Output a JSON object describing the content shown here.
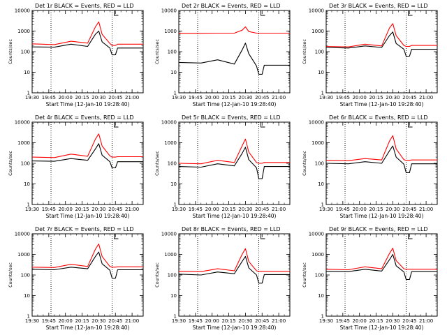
{
  "figure": {
    "title_format": "Det {d} BLACK = Events, RED = LLD",
    "ylabel": "Counts/sec",
    "xlabel": "Start Time (12-Jan-10 19:28:40)"
  },
  "colors": {
    "events": "#000000",
    "lld": "#ff0000",
    "axis": "#000000",
    "marker": "#000000"
  },
  "chart_data": [
    {
      "type": "line",
      "title": "Det 1r BLACK = Events, RED = LLD",
      "xlabel": "Start Time (12-Jan-10 19:28:40)",
      "ylabel": "Counts/sec",
      "y_scale": "log",
      "xlim": [
        "19:30",
        "21:10"
      ],
      "ylim": [
        1,
        10000
      ],
      "x_ticks": [
        "19:30",
        "19:45",
        "20:00",
        "20:15",
        "20:30",
        "20:45",
        "21:00"
      ],
      "y_ticks": [
        "1",
        "10",
        "100",
        "1000",
        "10000"
      ],
      "vertical_dotted_lines": [
        "19:47",
        "20:42"
      ],
      "x": [
        "19:30",
        "19:50",
        "20:05",
        "20:20",
        "20:27",
        "20:30",
        "20:33",
        "20:40",
        "20:42",
        "20:45",
        "20:47",
        "21:10"
      ],
      "series": [
        {
          "name": "Events",
          "color": "#000000",
          "values": [
            170,
            165,
            230,
            180,
            700,
            1000,
            300,
            150,
            70,
            70,
            150,
            150
          ]
        },
        {
          "name": "LLD",
          "color": "#ff0000",
          "values": [
            240,
            220,
            320,
            260,
            1600,
            2800,
            700,
            250,
            200,
            200,
            230,
            230
          ]
        }
      ]
    },
    {
      "type": "line",
      "title": "Det 2r BLACK = Events, RED = LLD",
      "xlabel": "Start Time (12-Jan-10 19:28:40)",
      "ylabel": "Counts/sec",
      "y_scale": "log",
      "xlim": [
        "19:30",
        "21:10"
      ],
      "ylim": [
        1,
        10000
      ],
      "x_ticks": [
        "19:30",
        "19:45",
        "20:00",
        "20:15",
        "20:30",
        "20:45",
        "21:00"
      ],
      "y_ticks": [
        "1",
        "10",
        "100",
        "1000",
        "10000"
      ],
      "vertical_dotted_lines": [
        "19:47",
        "20:42"
      ],
      "x": [
        "19:30",
        "19:50",
        "20:05",
        "20:20",
        "20:27",
        "20:30",
        "20:33",
        "20:40",
        "20:42",
        "20:45",
        "20:47",
        "21:10"
      ],
      "series": [
        {
          "name": "Events",
          "color": "#000000",
          "values": [
            30,
            28,
            40,
            25,
            120,
            260,
            80,
            20,
            8,
            8,
            22,
            22
          ]
        },
        {
          "name": "LLD",
          "color": "#ff0000",
          "values": [
            780,
            780,
            790,
            790,
            1100,
            1600,
            950,
            790,
            790,
            790,
            790,
            790
          ]
        }
      ]
    },
    {
      "type": "line",
      "title": "Det 3r BLACK = Events, RED = LLD",
      "xlabel": "Start Time (12-Jan-10 19:28:40)",
      "ylabel": "Counts/sec",
      "y_scale": "log",
      "xlim": [
        "19:30",
        "21:10"
      ],
      "ylim": [
        1,
        10000
      ],
      "x_ticks": [
        "19:30",
        "19:45",
        "20:00",
        "20:15",
        "20:30",
        "20:45",
        "21:00"
      ],
      "y_ticks": [
        "1",
        "10",
        "100",
        "1000",
        "10000"
      ],
      "vertical_dotted_lines": [
        "19:47",
        "20:42"
      ],
      "x": [
        "19:30",
        "19:50",
        "20:05",
        "20:20",
        "20:27",
        "20:30",
        "20:33",
        "20:40",
        "20:42",
        "20:45",
        "20:47",
        "21:10"
      ],
      "series": [
        {
          "name": "Events",
          "color": "#000000",
          "values": [
            160,
            150,
            190,
            160,
            600,
            900,
            250,
            130,
            60,
            60,
            130,
            130
          ]
        },
        {
          "name": "LLD",
          "color": "#ff0000",
          "values": [
            180,
            170,
            230,
            190,
            1400,
            2300,
            600,
            200,
            180,
            180,
            200,
            200
          ]
        }
      ]
    },
    {
      "type": "line",
      "title": "Det 4r BLACK = Events, RED = LLD",
      "xlabel": "Start Time (12-Jan-10 19:28:40)",
      "ylabel": "Counts/sec",
      "y_scale": "log",
      "xlim": [
        "19:30",
        "21:10"
      ],
      "ylim": [
        1,
        10000
      ],
      "x_ticks": [
        "19:30",
        "19:45",
        "20:00",
        "20:15",
        "20:30",
        "20:45",
        "21:00"
      ],
      "y_ticks": [
        "1",
        "10",
        "100",
        "1000",
        "10000"
      ],
      "vertical_dotted_lines": [
        "19:47",
        "20:42"
      ],
      "x": [
        "19:30",
        "19:50",
        "20:05",
        "20:20",
        "20:27",
        "20:30",
        "20:33",
        "20:40",
        "20:42",
        "20:45",
        "20:47",
        "21:10"
      ],
      "series": [
        {
          "name": "Events",
          "color": "#000000",
          "values": [
            130,
            125,
            170,
            140,
            500,
            900,
            250,
            120,
            60,
            60,
            120,
            120
          ]
        },
        {
          "name": "LLD",
          "color": "#ff0000",
          "values": [
            200,
            190,
            280,
            220,
            1500,
            2700,
            700,
            230,
            200,
            200,
            210,
            210
          ]
        }
      ]
    },
    {
      "type": "line",
      "title": "Det 5r BLACK = Events, RED = LLD",
      "xlabel": "Start Time (12-Jan-10 19:28:40)",
      "ylabel": "Counts/sec",
      "y_scale": "log",
      "xlim": [
        "19:30",
        "21:10"
      ],
      "ylim": [
        1,
        10000
      ],
      "x_ticks": [
        "19:30",
        "19:45",
        "20:00",
        "20:15",
        "20:30",
        "20:45",
        "21:00"
      ],
      "y_ticks": [
        "1",
        "10",
        "100",
        "1000",
        "10000"
      ],
      "vertical_dotted_lines": [
        "19:47",
        "20:42"
      ],
      "x": [
        "19:30",
        "19:50",
        "20:05",
        "20:20",
        "20:27",
        "20:30",
        "20:33",
        "20:40",
        "20:42",
        "20:45",
        "20:47",
        "21:10"
      ],
      "series": [
        {
          "name": "Events",
          "color": "#000000",
          "values": [
            70,
            65,
            95,
            75,
            300,
            600,
            150,
            60,
            18,
            18,
            70,
            70
          ]
        },
        {
          "name": "LLD",
          "color": "#ff0000",
          "values": [
            100,
            95,
            140,
            110,
            700,
            1500,
            350,
            110,
            100,
            100,
            110,
            110
          ]
        }
      ]
    },
    {
      "type": "line",
      "title": "Det 6r BLACK = Events, RED = LLD",
      "xlabel": "Start Time (12-Jan-10 19:28:40)",
      "ylabel": "Counts/sec",
      "y_scale": "log",
      "xlim": [
        "19:30",
        "21:10"
      ],
      "ylim": [
        1,
        10000
      ],
      "x_ticks": [
        "19:30",
        "19:45",
        "20:00",
        "20:15",
        "20:30",
        "20:45",
        "21:00"
      ],
      "y_ticks": [
        "1",
        "10",
        "100",
        "1000",
        "10000"
      ],
      "vertical_dotted_lines": [
        "19:47",
        "20:42"
      ],
      "x": [
        "19:30",
        "19:50",
        "20:05",
        "20:20",
        "20:27",
        "20:30",
        "20:33",
        "20:40",
        "20:42",
        "20:45",
        "20:47",
        "21:10"
      ],
      "series": [
        {
          "name": "Events",
          "color": "#000000",
          "values": [
            100,
            95,
            120,
            100,
            400,
            700,
            200,
            90,
            35,
            35,
            95,
            95
          ]
        },
        {
          "name": "LLD",
          "color": "#ff0000",
          "values": [
            140,
            135,
            170,
            145,
            1200,
            2200,
            500,
            150,
            140,
            140,
            145,
            145
          ]
        }
      ]
    },
    {
      "type": "line",
      "title": "Det 7r BLACK = Events, RED = LLD",
      "xlabel": "Start Time (12-Jan-10 19:28:40)",
      "ylabel": "Counts/sec",
      "y_scale": "log",
      "xlim": [
        "19:30",
        "21:10"
      ],
      "ylim": [
        1,
        10000
      ],
      "x_ticks": [
        "19:30",
        "19:45",
        "20:00",
        "20:15",
        "20:30",
        "20:45",
        "21:00"
      ],
      "y_ticks": [
        "1",
        "10",
        "100",
        "1000",
        "10000"
      ],
      "vertical_dotted_lines": [
        "19:47",
        "20:42"
      ],
      "x": [
        "19:30",
        "19:50",
        "20:05",
        "20:20",
        "20:27",
        "20:30",
        "20:33",
        "20:40",
        "20:42",
        "20:45",
        "20:47",
        "21:10"
      ],
      "series": [
        {
          "name": "Events",
          "color": "#000000",
          "values": [
            190,
            180,
            240,
            200,
            800,
            1300,
            350,
            170,
            70,
            70,
            180,
            180
          ]
        },
        {
          "name": "LLD",
          "color": "#ff0000",
          "values": [
            240,
            230,
            330,
            260,
            1800,
            3200,
            800,
            260,
            240,
            240,
            250,
            250
          ]
        }
      ]
    },
    {
      "type": "line",
      "title": "Det 8r BLACK = Events, RED = LLD",
      "xlabel": "Start Time (12-Jan-10 19:28:40)",
      "ylabel": "Counts/sec",
      "y_scale": "log",
      "xlim": [
        "19:30",
        "21:10"
      ],
      "ylim": [
        1,
        10000
      ],
      "x_ticks": [
        "19:30",
        "19:45",
        "20:00",
        "20:15",
        "20:30",
        "20:45",
        "21:00"
      ],
      "y_ticks": [
        "1",
        "10",
        "100",
        "1000",
        "10000"
      ],
      "vertical_dotted_lines": [
        "19:47",
        "20:42"
      ],
      "x": [
        "19:30",
        "19:50",
        "20:05",
        "20:20",
        "20:27",
        "20:30",
        "20:33",
        "20:40",
        "20:42",
        "20:45",
        "20:47",
        "21:10"
      ],
      "series": [
        {
          "name": "Events",
          "color": "#000000",
          "values": [
            110,
            100,
            140,
            115,
            450,
            800,
            220,
            100,
            40,
            40,
            105,
            105
          ]
        },
        {
          "name": "LLD",
          "color": "#ff0000",
          "values": [
            150,
            145,
            200,
            160,
            1000,
            1900,
            450,
            160,
            150,
            150,
            150,
            150
          ]
        }
      ]
    },
    {
      "type": "line",
      "title": "Det 9r BLACK = Events, RED = LLD",
      "xlabel": "Start Time (12-Jan-10 19:28:40)",
      "ylabel": "Counts/sec",
      "y_scale": "log",
      "xlim": [
        "19:30",
        "21:10"
      ],
      "ylim": [
        1,
        10000
      ],
      "x_ticks": [
        "19:30",
        "19:45",
        "20:00",
        "20:15",
        "20:30",
        "20:45",
        "21:00"
      ],
      "y_ticks": [
        "1",
        "10",
        "100",
        "1000",
        "10000"
      ],
      "vertical_dotted_lines": [
        "19:47",
        "20:42"
      ],
      "x": [
        "19:30",
        "19:50",
        "20:05",
        "20:20",
        "20:27",
        "20:30",
        "20:33",
        "20:40",
        "20:42",
        "20:45",
        "20:47",
        "21:10"
      ],
      "series": [
        {
          "name": "Events",
          "color": "#000000",
          "values": [
            150,
            145,
            190,
            155,
            550,
            1000,
            280,
            140,
            60,
            60,
            145,
            145
          ]
        },
        {
          "name": "LLD",
          "color": "#ff0000",
          "values": [
            190,
            180,
            250,
            200,
            1100,
            2000,
            500,
            200,
            190,
            190,
            190,
            190
          ]
        }
      ]
    }
  ]
}
